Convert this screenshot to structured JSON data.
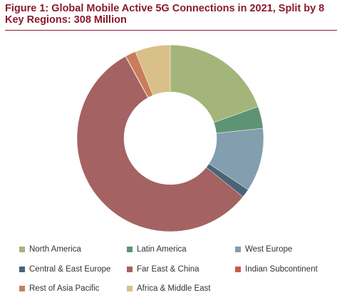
{
  "chart_data": {
    "type": "pie",
    "variant": "donut",
    "title": "Figure 1: Global Mobile Active 5G Connections in 2021, Split by 8 Key Regions: 308 Million",
    "legend_position": "bottom",
    "series": [
      {
        "name": "North America",
        "value": 19.5,
        "color": "#a3b57a"
      },
      {
        "name": "Latin America",
        "value": 3.8,
        "color": "#5e9474"
      },
      {
        "name": "West Europe",
        "value": 11.0,
        "color": "#839eae"
      },
      {
        "name": "Central & East Europe",
        "value": 1.5,
        "color": "#4a6477"
      },
      {
        "name": "Far East & China",
        "value": 56.2,
        "color": "#a46263"
      },
      {
        "name": "Indian Subcontinent",
        "value": 0.1,
        "color": "#c65a51"
      },
      {
        "name": "Rest of Asia Pacific",
        "value": 1.8,
        "color": "#c97d5a"
      },
      {
        "name": "Africa & Middle East",
        "value": 6.1,
        "color": "#d9c088"
      }
    ]
  }
}
